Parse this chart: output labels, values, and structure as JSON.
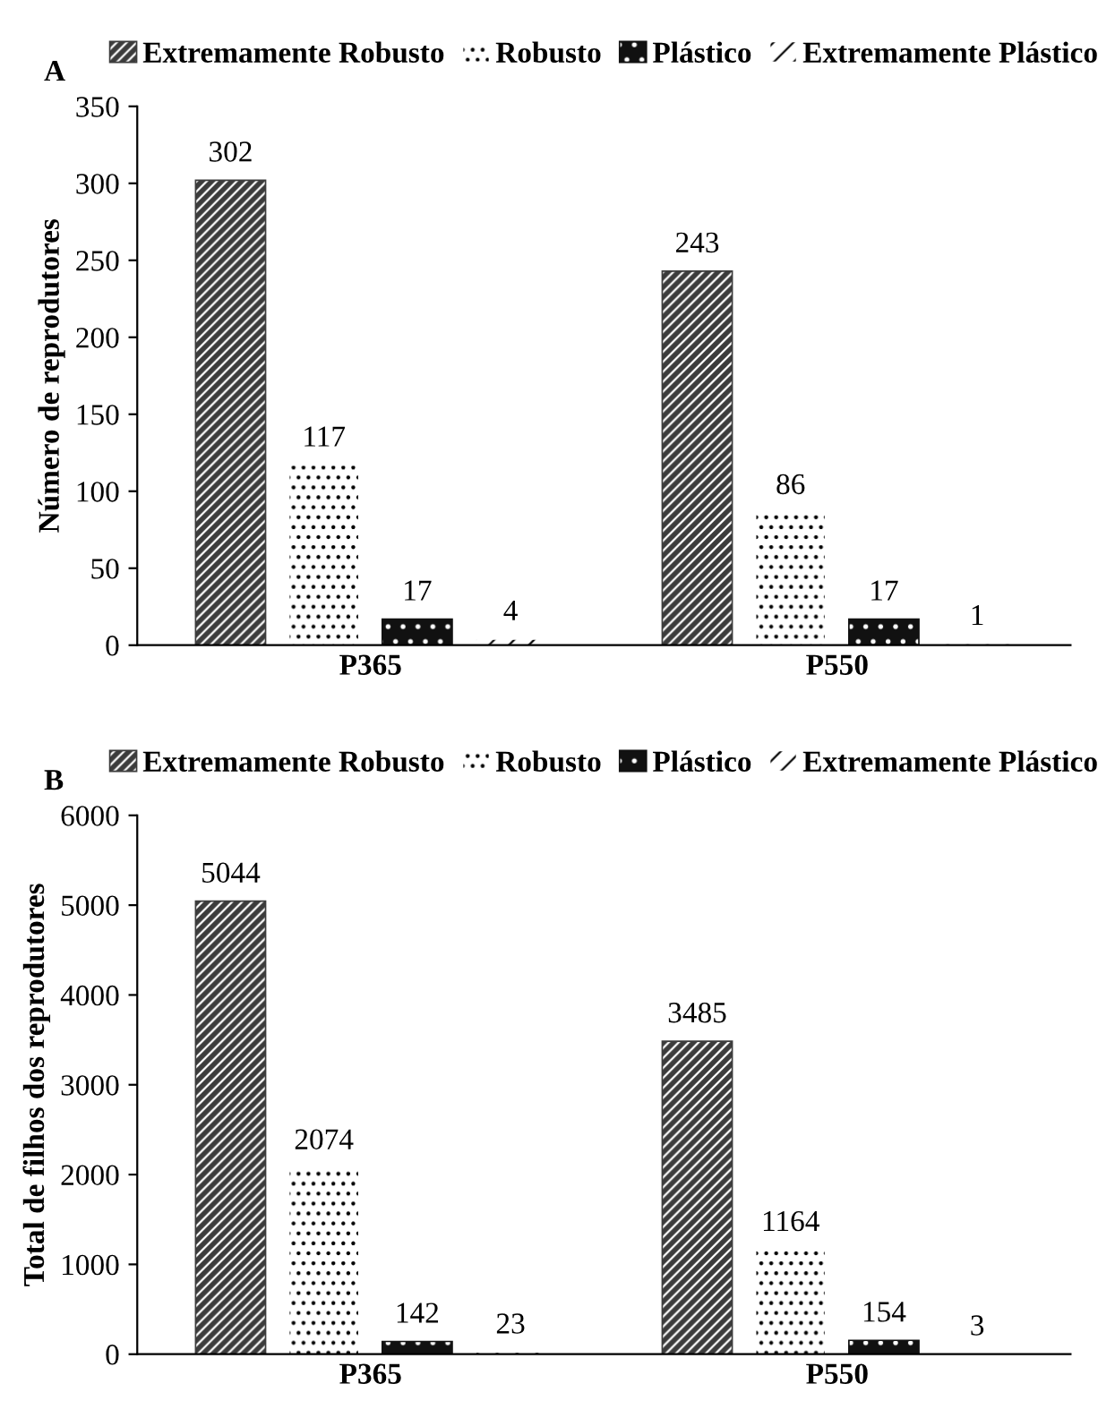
{
  "chart_data": [
    {
      "type": "bar",
      "title": "A",
      "ylabel": "Número de reprodutores",
      "categories": [
        "P365",
        "P550"
      ],
      "ylim": [
        0,
        350
      ],
      "yticks": [
        0,
        50,
        100,
        150,
        200,
        250,
        300,
        350
      ],
      "grid": false,
      "legend": "top",
      "data_labels": true,
      "series": [
        {
          "name": "Extremamente Robusto",
          "color": "#3c3c3c",
          "values": [
            302,
            243
          ]
        },
        {
          "name": "Robusto",
          "color": "#ffffff",
          "values": [
            117,
            86
          ]
        },
        {
          "name": "Plástico",
          "color": "#111111",
          "values": [
            17,
            17
          ]
        },
        {
          "name": "Extremamente Plástico",
          "color": "#ffffff",
          "values": [
            4,
            1
          ]
        }
      ]
    },
    {
      "type": "bar",
      "title": "B",
      "ylabel": "Total de filhos dos reprodutores",
      "categories": [
        "P365",
        "P550"
      ],
      "ylim": [
        0,
        6000
      ],
      "yticks": [
        0,
        1000,
        2000,
        3000,
        4000,
        5000,
        6000
      ],
      "grid": false,
      "legend": "top",
      "data_labels": true,
      "series": [
        {
          "name": "Extremamente Robusto",
          "color": "#3c3c3c",
          "values": [
            5044,
            3485
          ]
        },
        {
          "name": "Robusto",
          "color": "#ffffff",
          "values": [
            2074,
            1164
          ]
        },
        {
          "name": "Plástico",
          "color": "#111111",
          "values": [
            142,
            154
          ]
        },
        {
          "name": "Extremamente Plástico",
          "color": "#ffffff",
          "values": [
            23,
            3
          ]
        }
      ]
    }
  ]
}
